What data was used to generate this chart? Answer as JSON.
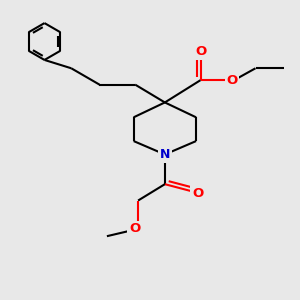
{
  "bg_color": "#e8e8e8",
  "bond_color": "#000000",
  "O_color": "#ff0000",
  "N_color": "#0000cc",
  "line_width": 1.5,
  "figsize": [
    3.0,
    3.0
  ],
  "dpi": 100,
  "xlim": [
    0,
    10
  ],
  "ylim": [
    0,
    10
  ]
}
